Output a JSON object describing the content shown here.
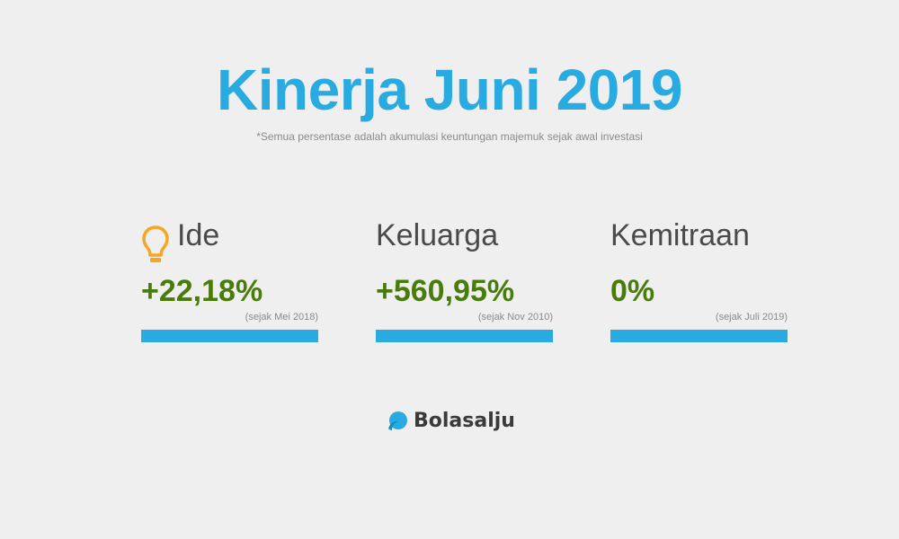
{
  "title": "Kinerja Juni 2019",
  "subtitle": "*Semua persentase adalah akumulasi keuntungan majemuk sejak awal investasi",
  "cards": [
    {
      "title": "Ide",
      "icon": "lightbulb-icon",
      "value": "+22,18%",
      "since": "(sejak Mei 2018)",
      "progress": 1.0
    },
    {
      "title": "Keluarga",
      "value": "+560,95%",
      "since": "(sejak Nov 2010)",
      "progress": 1.0
    },
    {
      "title": "Kemitraan",
      "value": "0%",
      "since": "(sejak Juli 2019)",
      "progress": 1.0
    }
  ],
  "brand": {
    "name": "Bolasalju",
    "icon": "snowball-logo-icon"
  },
  "colors": {
    "background": "#efefef",
    "accent": "#29abe2",
    "value": "#4a7c0c",
    "icon": "#f5a623",
    "text": "#4a4a4a"
  }
}
